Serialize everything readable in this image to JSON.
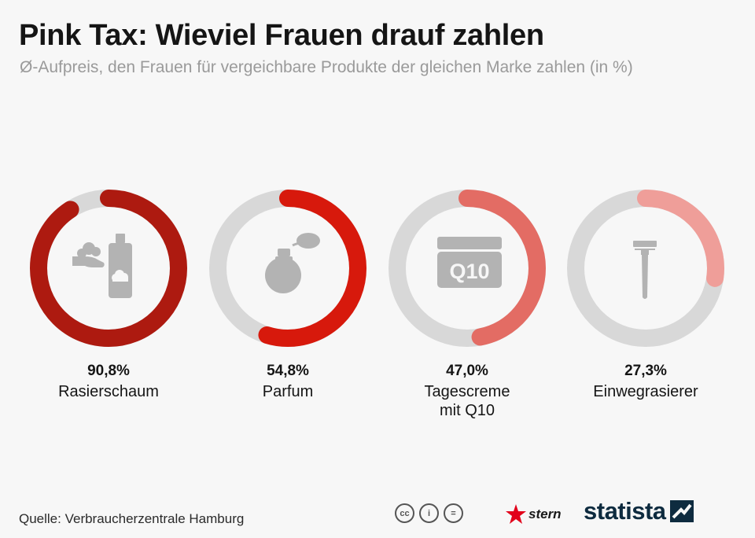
{
  "header": {
    "title": "Pink Tax: Wieviel Frauen drauf zahlen",
    "subtitle": "Ø-Aufpreis, den Frauen für vergeichbare Produkte der gleichen Marke zahlen (in %)"
  },
  "chart_data": {
    "type": "donut",
    "title": "Pink Tax: Wieviel Frauen drauf zahlen",
    "subtitle": "Ø-Aufpreis, den Frauen für vergeichbare Produkte der gleichen Marke zahlen (in %)",
    "unit": "%",
    "max": 100,
    "categories": [
      "Rasierschaum",
      "Parfum",
      "Tagescreme mit Q10",
      "Einwegrasierer"
    ],
    "values": [
      90.8,
      54.8,
      47.0,
      27.3
    ],
    "items": [
      {
        "name": "Rasierschaum",
        "display_name": "Rasierschaum",
        "value": 90.8,
        "value_label": "90,8%",
        "color": "#ad1a10",
        "icon": "shaving-foam-icon"
      },
      {
        "name": "Parfum",
        "display_name": "Parfum",
        "value": 54.8,
        "value_label": "54,8%",
        "color": "#d7190c",
        "icon": "perfume-bottle-icon"
      },
      {
        "name": "Tagescreme mit Q10",
        "display_name": "Tagescreme\nmit Q10",
        "value": 47.0,
        "value_label": "47,0%",
        "color": "#e36c64",
        "icon": "cream-jar-icon",
        "icon_text": "Q10"
      },
      {
        "name": "Einwegrasierer",
        "display_name": "Einwegrasierer",
        "value": 27.3,
        "value_label": "27,3%",
        "color": "#ef9e99",
        "icon": "razor-icon"
      }
    ],
    "track_color": "#d8d8d8"
  },
  "footer": {
    "source": "Quelle: Verbraucherzentrale Hamburg",
    "license_icons": [
      "cc-icon",
      "attribution-icon",
      "no-derivatives-icon"
    ],
    "license_text": [
      "cc",
      "i",
      "="
    ],
    "stern_label": "stern",
    "statista_label": "statista"
  },
  "colors": {
    "background": "#f7f7f7",
    "icon_gray": "#b3b3b3",
    "statista_navy": "#0e2b3f",
    "stern_red": "#e2001a"
  }
}
